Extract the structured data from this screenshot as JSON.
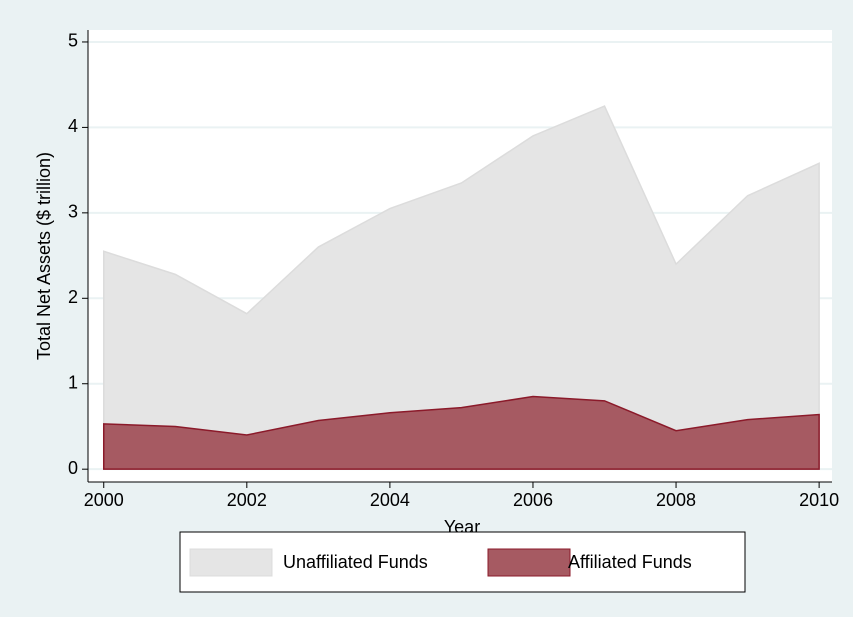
{
  "chart_data": {
    "type": "area",
    "x": [
      2000,
      2001,
      2002,
      2003,
      2004,
      2005,
      2006,
      2007,
      2008,
      2009,
      2010
    ],
    "series": [
      {
        "name": "Unaffiliated Funds",
        "color": "#e5e5e5",
        "values": [
          2.55,
          2.28,
          1.82,
          2.6,
          3.05,
          3.35,
          3.9,
          4.25,
          2.4,
          3.2,
          3.58
        ]
      },
      {
        "name": "Affiliated Funds",
        "color": "#a65a62",
        "values": [
          0.53,
          0.5,
          0.4,
          0.57,
          0.66,
          0.72,
          0.85,
          0.8,
          0.45,
          0.58,
          0.64
        ]
      }
    ],
    "xlabel": "Year",
    "ylabel": "Total Net Assets ($ trillion)",
    "xlim": [
      1999.78,
      2010.18
    ],
    "xticks": [
      2000,
      2002,
      2004,
      2006,
      2008,
      2010
    ],
    "ylim": [
      -0.15,
      5.14
    ],
    "yticks": [
      0,
      1,
      2,
      3,
      4,
      5
    ],
    "grid": true,
    "legend": "bottom"
  }
}
